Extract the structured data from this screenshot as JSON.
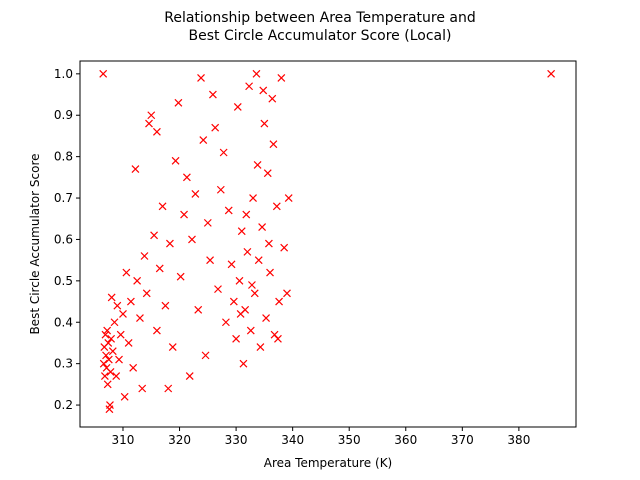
{
  "chart_data": {
    "type": "scatter",
    "title": [
      "Relationship between Area Temperature and",
      "Best Circle Accumulator Score (Local)"
    ],
    "x_label": "Area Temperature (K)",
    "y_label": "Best Circle Accumulator Score",
    "marker": "x",
    "color": "#ff0000",
    "xlim": [
      302.4,
      390.1
    ],
    "ylim": [
      0.147,
      1.031
    ],
    "xticks": [
      310,
      320,
      330,
      340,
      350,
      360,
      370,
      380
    ],
    "yticks": [
      0.2,
      0.3,
      0.4,
      0.5,
      0.6,
      0.7,
      0.8,
      0.9,
      {
        "value": 1,
        "label": "1.0"
      }
    ],
    "x": [
      306.5,
      385.7,
      306.6,
      306.7,
      306.8,
      306.9,
      307.0,
      307.1,
      307.2,
      307.3,
      307.4,
      307.5,
      307.6,
      307.7,
      307.8,
      307.9,
      308.0,
      308.2,
      308.5,
      308.8,
      309.0,
      309.3,
      309.6,
      310.0,
      310.3,
      310.6,
      311.0,
      311.4,
      311.8,
      312.2,
      312.5,
      313.0,
      313.4,
      313.8,
      314.2,
      314.6,
      315.0,
      315.5,
      316.0,
      316.0,
      316.5,
      317.0,
      317.5,
      318.0,
      318.3,
      318.8,
      319.3,
      319.8,
      320.2,
      320.8,
      321.3,
      321.8,
      322.2,
      322.8,
      323.3,
      323.8,
      324.2,
      324.6,
      325.0,
      325.4,
      325.9,
      326.3,
      326.8,
      327.3,
      327.8,
      328.2,
      328.7,
      329.2,
      329.6,
      330.0,
      330.3,
      330.6,
      331.0,
      331.3,
      331.6,
      332.0,
      332.3,
      332.6,
      333.0,
      333.3,
      333.6,
      334.0,
      334.3,
      334.6,
      335.0,
      335.3,
      335.6,
      336.0,
      336.4,
      336.8,
      337.2,
      337.6,
      338.0,
      338.5,
      339.0,
      339.3,
      334.8,
      333.8,
      331.8,
      335.8,
      332.8,
      330.8,
      336.6,
      337.4
    ],
    "values": [
      1.0,
      1.0,
      0.3,
      0.34,
      0.27,
      0.37,
      0.32,
      0.29,
      0.38,
      0.25,
      0.35,
      0.31,
      0.19,
      0.2,
      0.28,
      0.36,
      0.46,
      0.33,
      0.4,
      0.27,
      0.44,
      0.31,
      0.37,
      0.42,
      0.22,
      0.52,
      0.35,
      0.45,
      0.29,
      0.77,
      0.5,
      0.41,
      0.24,
      0.56,
      0.47,
      0.88,
      0.9,
      0.61,
      0.86,
      0.38,
      0.53,
      0.68,
      0.44,
      0.24,
      0.59,
      0.34,
      0.79,
      0.93,
      0.51,
      0.66,
      0.75,
      0.27,
      0.6,
      0.71,
      0.43,
      0.99,
      0.84,
      0.32,
      0.64,
      0.55,
      0.95,
      0.87,
      0.48,
      0.72,
      0.81,
      0.4,
      0.67,
      0.54,
      0.45,
      0.36,
      0.92,
      0.5,
      0.62,
      0.3,
      0.43,
      0.57,
      0.97,
      0.38,
      0.7,
      0.47,
      1.0,
      0.55,
      0.34,
      0.63,
      0.88,
      0.41,
      0.76,
      0.52,
      0.94,
      0.37,
      0.68,
      0.45,
      0.99,
      0.58,
      0.47,
      0.7,
      0.96,
      0.78,
      0.66,
      0.59,
      0.49,
      0.42,
      0.83,
      0.36
    ]
  }
}
